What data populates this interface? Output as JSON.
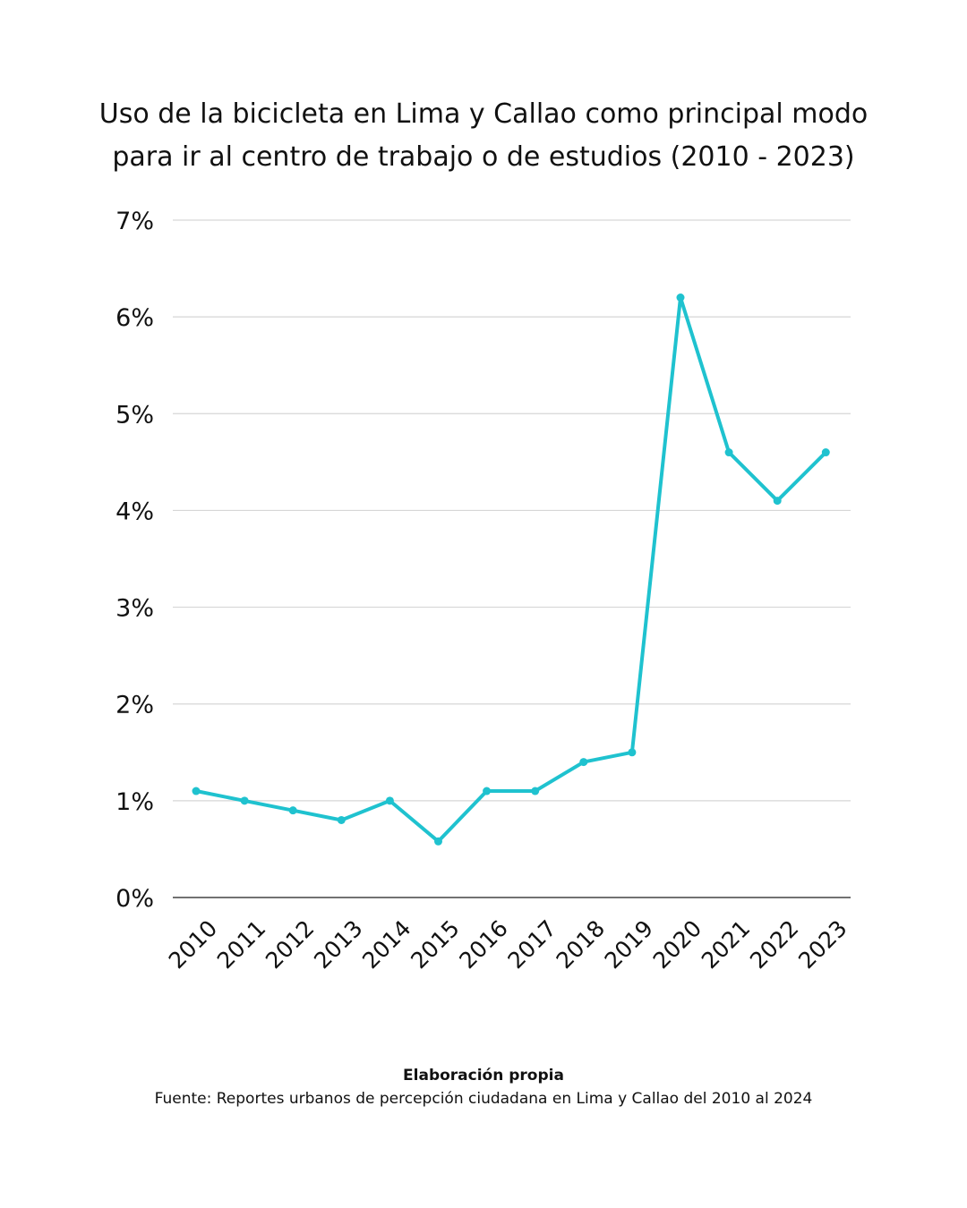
{
  "chart_data": {
    "type": "line",
    "title_lines": [
      "Uso de la bicicleta en Lima y Callao como principal modo",
      "para ir al centro de trabajo o de estudios (2010 - 2023)"
    ],
    "xlabel": "",
    "ylabel": "",
    "categories": [
      "2010",
      "2011",
      "2012",
      "2013",
      "2014",
      "2015",
      "2016",
      "2017",
      "2018",
      "2019",
      "2020",
      "2021",
      "2022",
      "2023"
    ],
    "series": [
      {
        "values": [
          1.1,
          1.0,
          0.9,
          0.8,
          1.0,
          0.58,
          1.1,
          1.1,
          1.4,
          1.5,
          6.2,
          4.6,
          4.1,
          4.6
        ]
      }
    ],
    "ylim": [
      0,
      7
    ],
    "yticks": [
      0,
      1,
      2,
      3,
      4,
      5,
      6,
      7
    ],
    "ytick_labels": [
      "0%",
      "1%",
      "2%",
      "3%",
      "4%",
      "5%",
      "6%",
      "7%"
    ],
    "grid": true,
    "legend": "none"
  },
  "footer": {
    "credit": "Elaboración propia",
    "source": "Fuente: Reportes urbanos de percepción ciudadana en Lima y Callao del 2010 al 2024"
  },
  "colors": {
    "line": "#1fc2cf",
    "grid": "#d6d6d6",
    "axis": "#444444",
    "text": "#111111"
  }
}
